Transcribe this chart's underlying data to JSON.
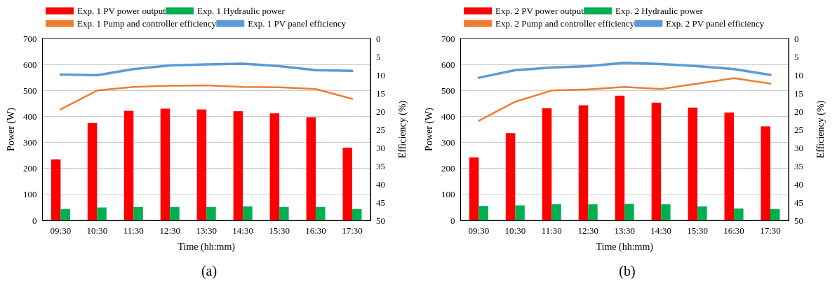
{
  "chart_data": [
    {
      "type": "bar",
      "xlabel": "Time (hh:mm)",
      "ylabel": "Power (W)",
      "y2label": "Efficiency (%)",
      "annotations": [
        "(a)"
      ],
      "categories": [
        "09:30",
        "10:30",
        "11:30",
        "12:30",
        "13:30",
        "14:30",
        "15:30",
        "16:30",
        "17:30"
      ],
      "series": [
        {
          "name": "Exp. 1 PV power output",
          "color": "#ff0000",
          "values": [
            235,
            375,
            422,
            430,
            427,
            420,
            412,
            397,
            280
          ]
        },
        {
          "name": "Exp. 1 Hydraulic power",
          "color": "#00b050",
          "values": [
            44,
            50,
            52,
            52,
            52,
            54,
            52,
            52,
            44
          ]
        },
        {
          "name": "Exp. 1 Pump and controller efficiency",
          "type": "line",
          "axis": "y2",
          "color": "#ed7d31",
          "values": [
            19.5,
            14.3,
            13.3,
            13.0,
            12.9,
            13.3,
            13.4,
            13.9,
            16.6
          ]
        },
        {
          "name": "Exp. 1 PV panel efficiency",
          "type": "line",
          "axis": "y2",
          "color": "#5b9bd5",
          "values": [
            9.9,
            10.1,
            8.4,
            7.4,
            7.1,
            6.9,
            7.6,
            8.7,
            8.9
          ]
        }
      ],
      "ylim": [
        0,
        700
      ],
      "yticks": [
        0,
        100,
        200,
        300,
        400,
        500,
        600,
        700
      ],
      "y2lim": [
        50,
        0
      ],
      "y2ticks": [
        0,
        5,
        10,
        15,
        20,
        25,
        30,
        35,
        40,
        45,
        50
      ],
      "grid": "y",
      "legend": "top",
      "marker": "none",
      "line_style": "solid"
    },
    {
      "type": "bar",
      "xlabel": "Time (hh:mm)",
      "ylabel": "Power (W)",
      "y2label": "Efficiency (%)",
      "annotations": [
        "(b)"
      ],
      "categories": [
        "09:30",
        "10:30",
        "11:30",
        "12:30",
        "13:30",
        "14:30",
        "15:30",
        "16:30",
        "17:30"
      ],
      "series": [
        {
          "name": "Exp. 2 PV power output",
          "color": "#ff0000",
          "values": [
            242,
            336,
            432,
            443,
            480,
            453,
            434,
            415,
            362
          ]
        },
        {
          "name": "Exp. 2 Hydraulic power",
          "color": "#00b050",
          "values": [
            56,
            58,
            62,
            62,
            64,
            62,
            54,
            46,
            44
          ]
        },
        {
          "name": "Exp. 2 Pump and controller efficiency",
          "type": "line",
          "axis": "y2",
          "color": "#ed7d31",
          "values": [
            22.6,
            17.4,
            14.3,
            14.0,
            13.3,
            13.9,
            12.4,
            10.9,
            12.4
          ]
        },
        {
          "name": "Exp. 2 PV panel efficiency",
          "type": "line",
          "axis": "y2",
          "color": "#5b9bd5",
          "values": [
            10.8,
            8.7,
            8.0,
            7.6,
            6.7,
            7.0,
            7.6,
            8.4,
            10.0
          ]
        }
      ],
      "ylim": [
        0,
        700
      ],
      "yticks": [
        0,
        100,
        200,
        300,
        400,
        500,
        600,
        700
      ],
      "y2lim": [
        50,
        0
      ],
      "y2ticks": [
        0,
        5,
        10,
        15,
        20,
        25,
        30,
        35,
        40,
        45,
        50
      ],
      "grid": "y",
      "legend": "top",
      "marker": "none",
      "line_style": "solid"
    }
  ]
}
